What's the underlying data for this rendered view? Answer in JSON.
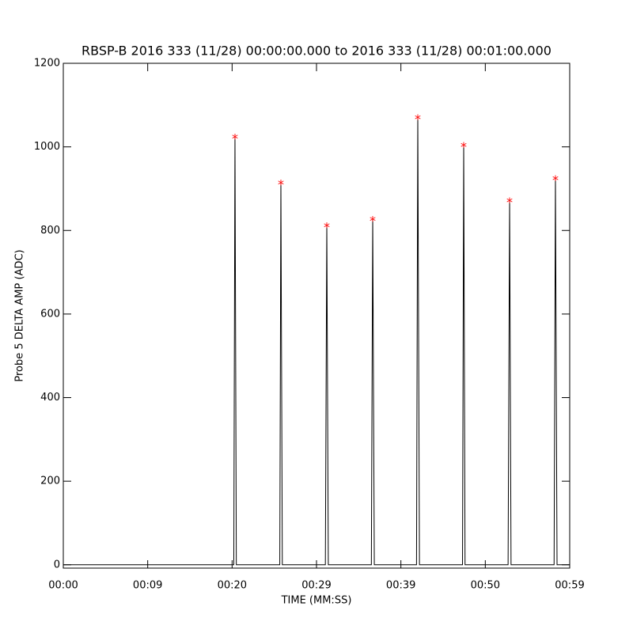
{
  "chart_data": {
    "type": "line",
    "title": "RBSP-B 2016 333 (11/28) 00:00:00.000 to 2016 333 (11/28) 00:01:00.000",
    "xlabel": "TIME (MM:SS)",
    "ylabel": "Probe 5 DELTA AMP (ADC)",
    "xlim": [
      0,
      60
    ],
    "ylim": [
      -8,
      1200
    ],
    "xticks": [
      {
        "value": 0,
        "label": "00:00"
      },
      {
        "value": 10,
        "label": "00:09"
      },
      {
        "value": 20,
        "label": "00:20"
      },
      {
        "value": 30,
        "label": "00:29"
      },
      {
        "value": 40,
        "label": "00:39"
      },
      {
        "value": 50,
        "label": "00:50"
      },
      {
        "value": 60,
        "label": "00:59"
      }
    ],
    "yticks": [
      0,
      200,
      400,
      600,
      800,
      1000,
      1200
    ],
    "series": [
      {
        "color": "#000000",
        "x": [
          0,
          20.2,
          20.34,
          20.5,
          25.65,
          25.78,
          25.95,
          31.05,
          31.22,
          31.4,
          36.5,
          36.66,
          36.85,
          41.85,
          42.0,
          42.2,
          47.3,
          47.44,
          47.6,
          52.7,
          52.88,
          53.05,
          58.15,
          58.31,
          58.5,
          60
        ],
        "values": [
          0,
          0,
          1026,
          0,
          0,
          916,
          0,
          0,
          814,
          0,
          0,
          829,
          0,
          0,
          1072,
          0,
          0,
          1006,
          0,
          0,
          873,
          0,
          0,
          926,
          0,
          0
        ]
      }
    ],
    "peaks": {
      "color": "#ff0000",
      "marker": "*",
      "x": [
        20.34,
        25.78,
        31.22,
        36.66,
        42.0,
        47.44,
        52.88,
        58.31
      ],
      "values": [
        1026,
        916,
        814,
        829,
        1072,
        1006,
        873,
        926
      ]
    }
  }
}
